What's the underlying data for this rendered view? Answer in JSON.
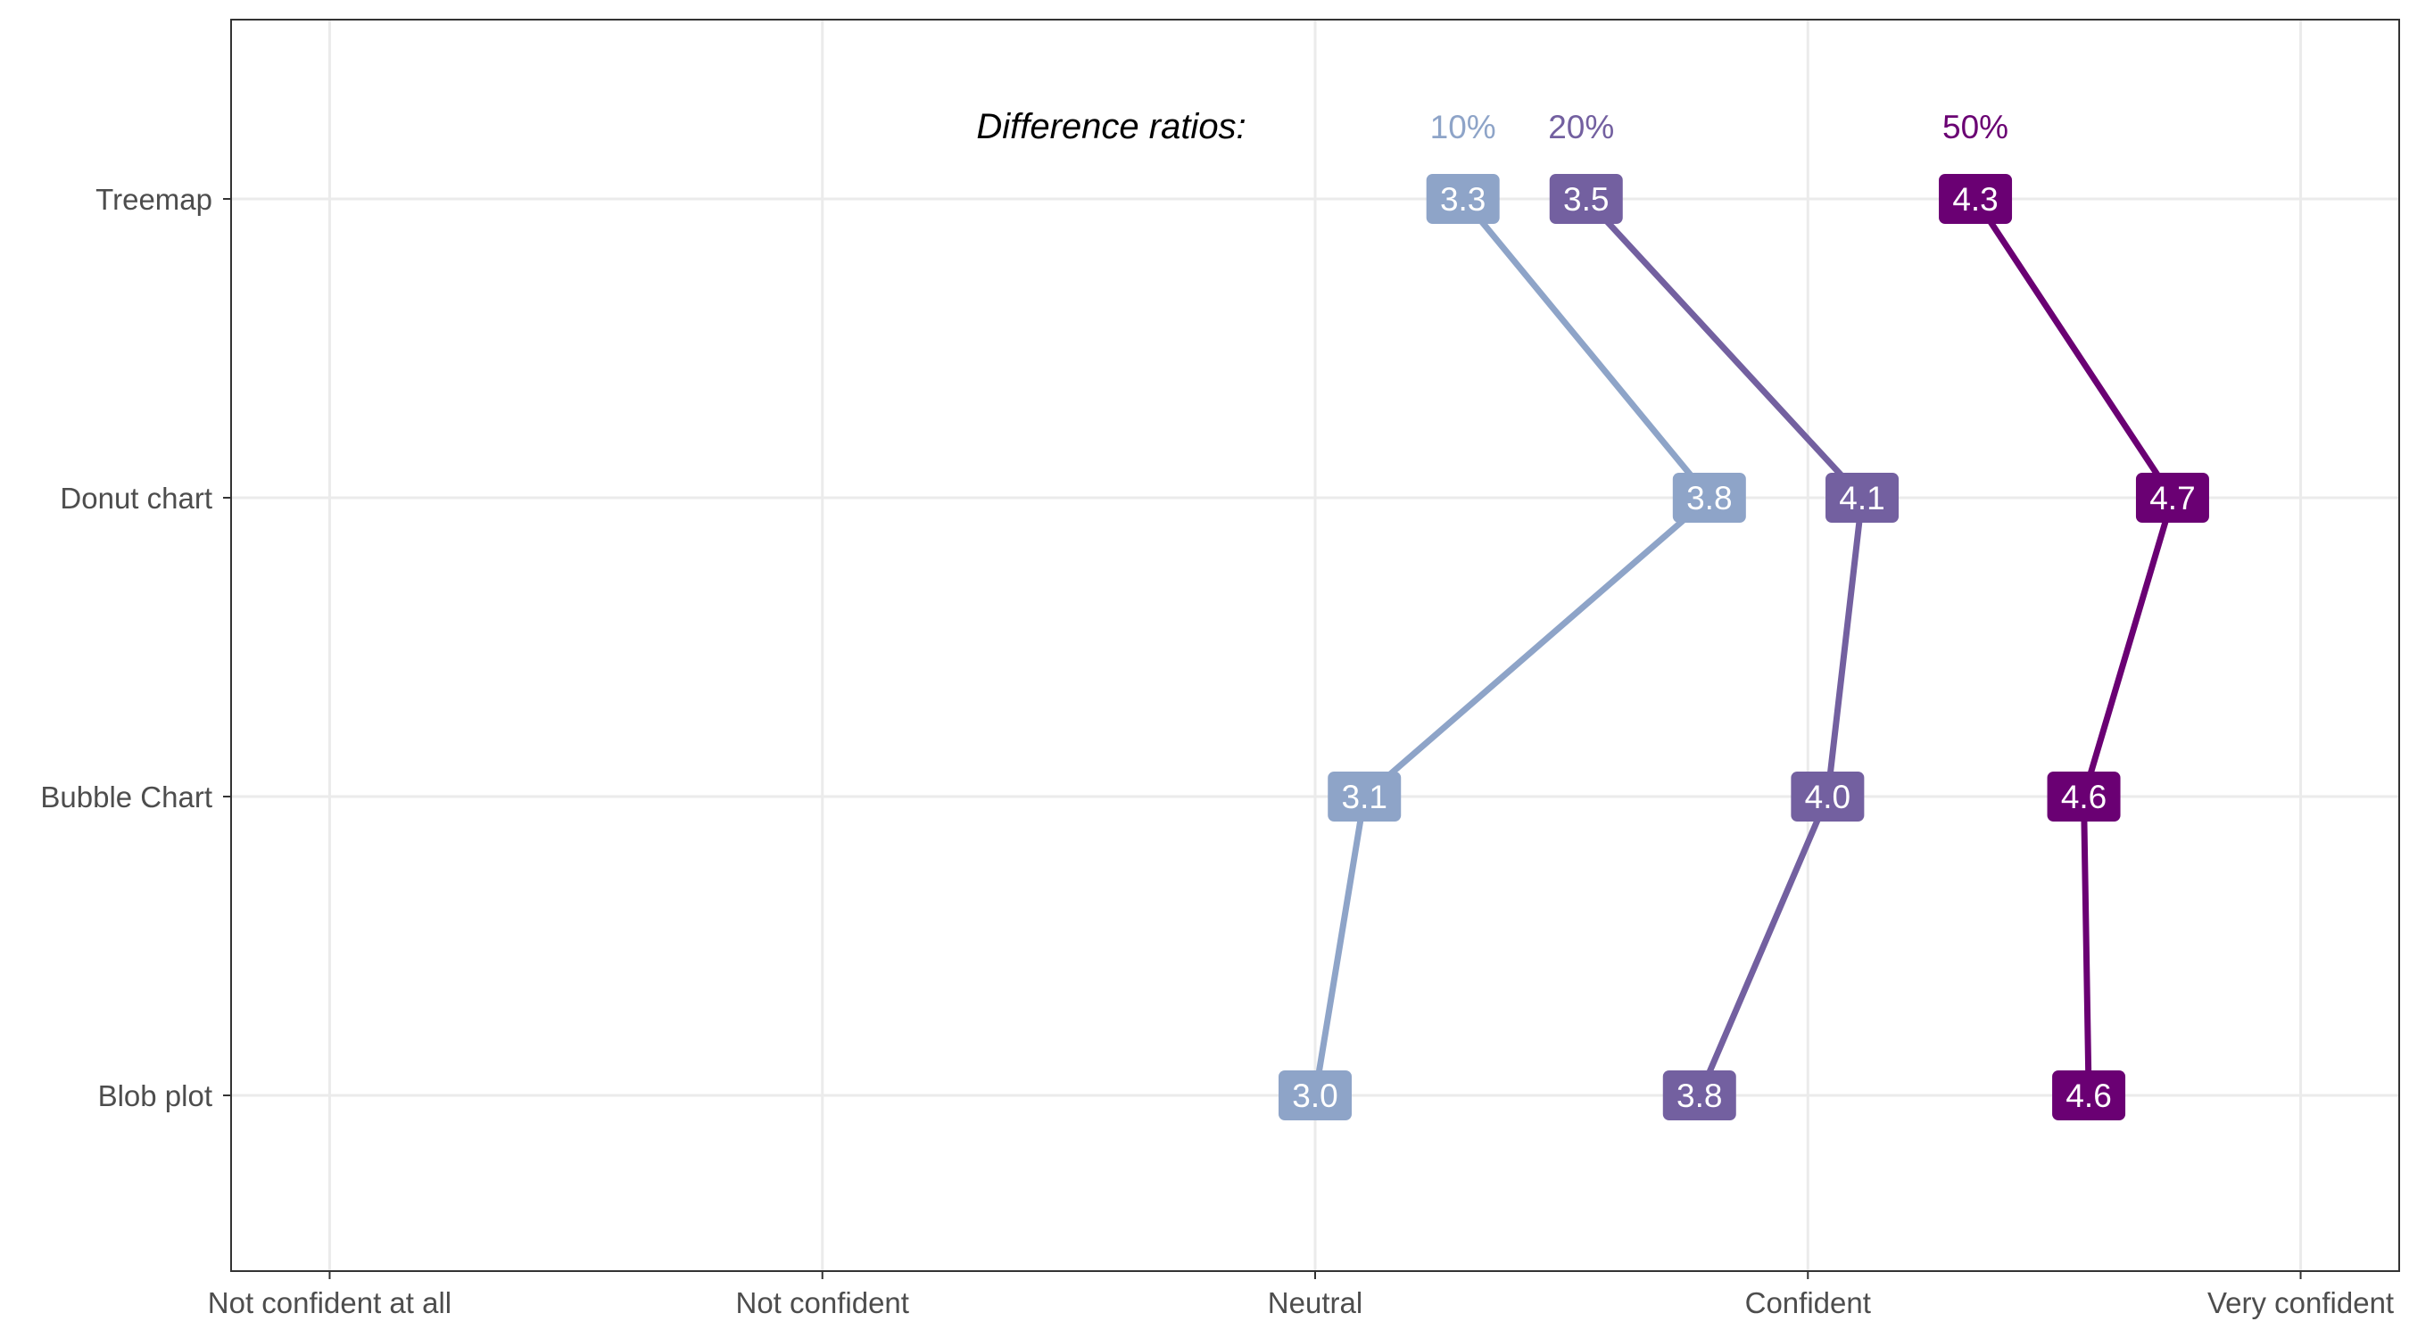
{
  "chart_data": {
    "type": "line",
    "title": "",
    "xlabel": "",
    "ylabel": "",
    "x_categories": [
      "Not confident at all",
      "Not confident",
      "Neutral",
      "Confident",
      "Very confident"
    ],
    "xlim": [
      0.8,
      5.2
    ],
    "categories": [
      "Treemap",
      "Donut chart",
      "Bubble Chart",
      "Blob plot"
    ],
    "grid": true,
    "legend": "none",
    "annotation": {
      "title": "Difference ratios:",
      "labels": [
        {
          "text": "10%",
          "x": 3.3,
          "series": 0
        },
        {
          "text": "20%",
          "x": 3.54,
          "series": 1
        },
        {
          "text": "50%",
          "x": 4.34,
          "series": 2
        }
      ]
    },
    "series": [
      {
        "values": [
          3.3,
          3.8,
          3.1,
          3.0
        ],
        "labels": [
          "3.3",
          "3.8",
          "3.1",
          "3.0"
        ],
        "color": "#8ea4c8"
      },
      {
        "values": [
          3.55,
          4.11,
          4.04,
          3.78
        ],
        "labels": [
          "3.5",
          "4.1",
          "4.0",
          "3.8"
        ],
        "color": "#7360a0"
      },
      {
        "values": [
          4.34,
          4.74,
          4.56,
          4.57
        ],
        "labels": [
          "4.3",
          "4.7",
          "4.6",
          "4.6"
        ],
        "color": "#6a0073"
      }
    ]
  }
}
